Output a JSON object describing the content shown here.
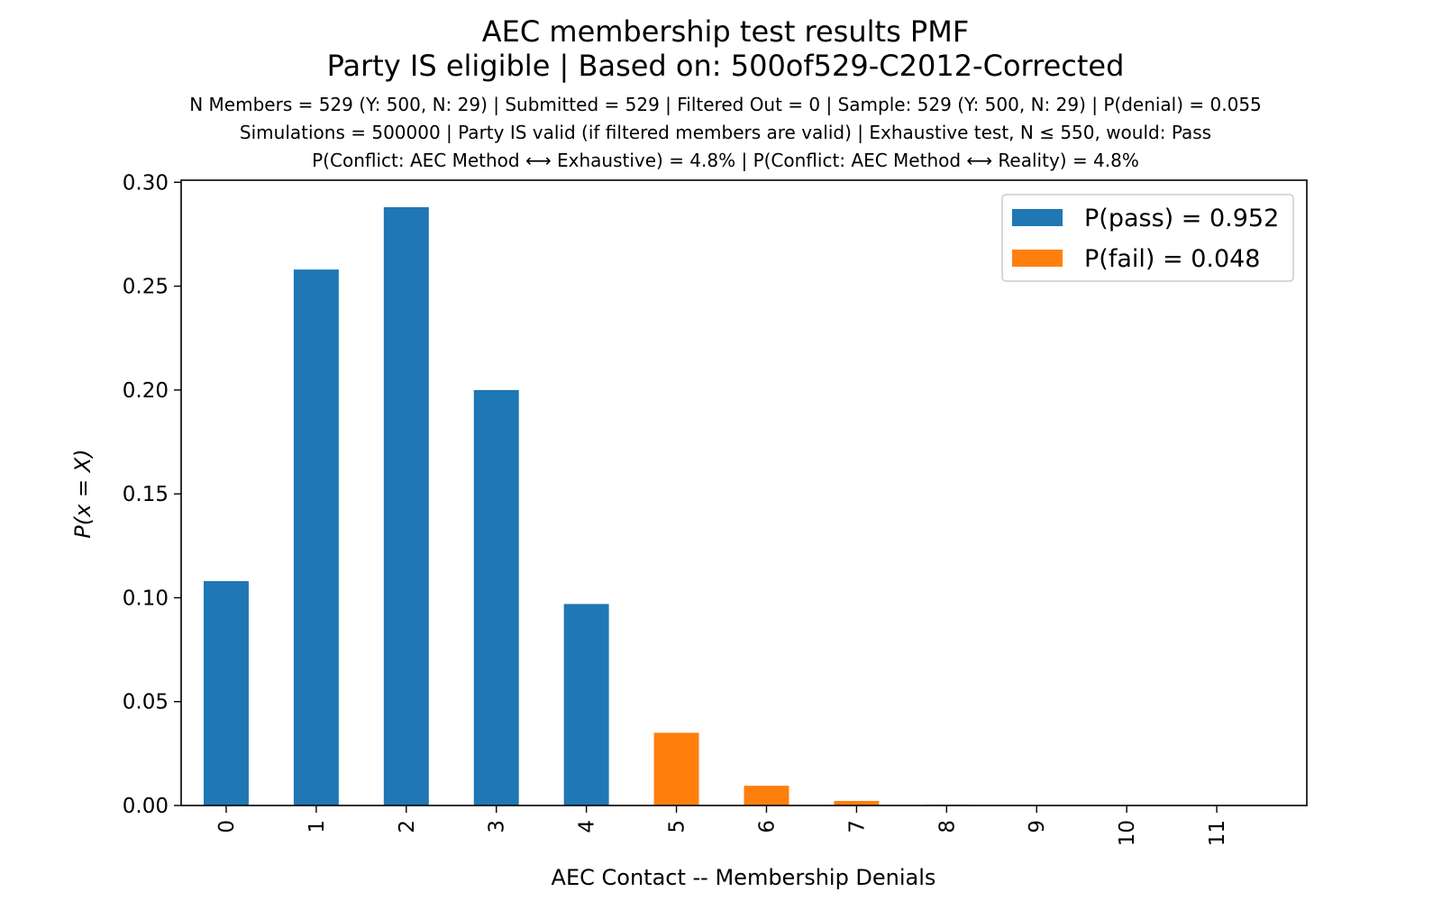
{
  "chart_data": {
    "type": "bar",
    "title": "AEC membership test results PMF",
    "subtitle": "Party IS eligible | Based on: 500of529-C2012-Corrected",
    "info_lines": [
      "N Members = 529 (Y: 500, N: 29) | Submitted = 529 | Filtered Out = 0 | Sample: 529 (Y: 500, N: 29) | P(denial) = 0.055",
      "Simulations = 500000 | Party IS valid (if filtered members are valid) | Exhaustive test, N ≤ 550, would: Pass",
      "P(Conflict: AEC Method ⟷ Exhaustive) = 4.8% | P(Conflict: AEC Method ⟷ Reality) = 4.8%"
    ],
    "xlabel": "AEC Contact -- Membership Denials",
    "ylabel": "P(x = X)",
    "categories": [
      "0",
      "1",
      "2",
      "3",
      "4",
      "5",
      "6",
      "7",
      "8",
      "9",
      "10",
      "11"
    ],
    "series": [
      {
        "name": "P(pass) = 0.952",
        "color": "#1f77b4",
        "values": [
          0.108,
          0.258,
          0.288,
          0.2,
          0.097,
          null,
          null,
          null,
          null,
          null,
          null,
          null
        ]
      },
      {
        "name": "P(fail) = 0.048",
        "color": "#ff7f0e",
        "values": [
          null,
          null,
          null,
          null,
          null,
          0.035,
          0.0095,
          0.0022,
          0.0004,
          0.0001,
          2e-05,
          0.0
        ]
      }
    ],
    "yticks": [
      "0.00",
      "0.05",
      "0.10",
      "0.15",
      "0.20",
      "0.25",
      "0.30"
    ],
    "ylim": [
      0,
      0.301
    ],
    "grid": false,
    "legend_position": "upper right"
  }
}
